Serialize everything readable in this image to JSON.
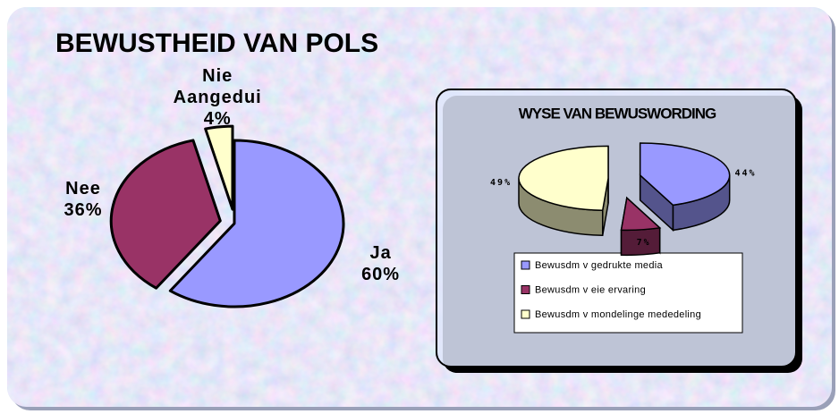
{
  "chart_data": [
    {
      "type": "pie",
      "title": "BEWUSTHEID VAN POLS",
      "categories": [
        "Ja",
        "Nee",
        "Nie Aangedui"
      ],
      "values": [
        60,
        36,
        4
      ],
      "value_labels": [
        "60%",
        "36%",
        "4%"
      ],
      "colors": [
        "#9999ff",
        "#993366",
        "#ffffcc"
      ]
    },
    {
      "type": "pie",
      "three_d": true,
      "title": "WYSE VAN BEWUSWORDING",
      "categories": [
        "Bewusdm v gedrukte media",
        "Bewusdm v eie ervaring",
        "Bewusdm v mondelinge mededeling"
      ],
      "values": [
        44,
        7,
        49
      ],
      "value_labels": [
        "44%",
        "7%",
        "49%"
      ],
      "colors": [
        "#9999ff",
        "#993366",
        "#ffffcc"
      ],
      "legend": "bottom"
    }
  ]
}
